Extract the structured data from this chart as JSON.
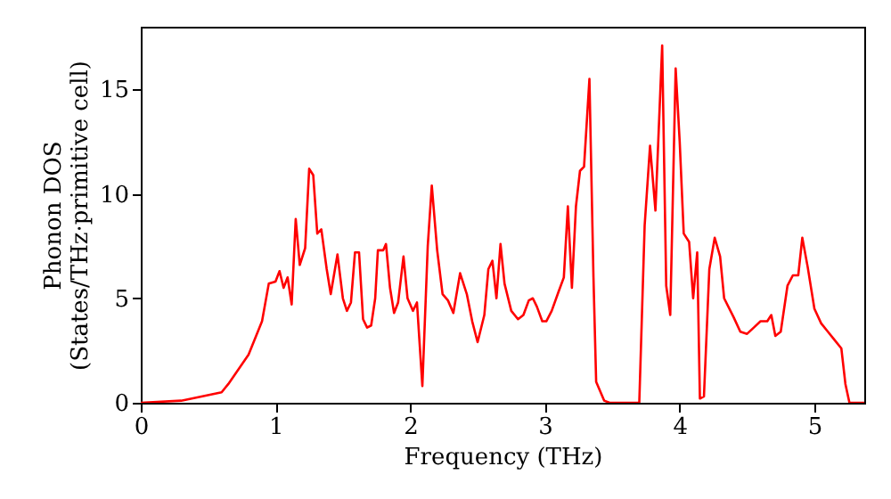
{
  "chart_data": {
    "type": "line",
    "xlabel": "Frequency (THz)",
    "ylabel": "Phonon DOS\n(States/THz·primitive cell)",
    "xlim": [
      0,
      5.37
    ],
    "ylim": [
      0,
      18
    ],
    "xticks": [
      0,
      1,
      2,
      3,
      4,
      5
    ],
    "yticks": [
      0,
      5,
      10,
      15
    ],
    "grid": false,
    "marker": "none",
    "line_style": "solid",
    "series": [
      {
        "color": "#ff0000",
        "x": [
          0,
          0.3,
          0.6,
          0.65,
          0.8,
          0.9,
          0.95,
          1.0,
          1.03,
          1.06,
          1.09,
          1.12,
          1.15,
          1.18,
          1.22,
          1.25,
          1.28,
          1.31,
          1.34,
          1.38,
          1.41,
          1.46,
          1.5,
          1.53,
          1.56,
          1.59,
          1.62,
          1.65,
          1.68,
          1.71,
          1.74,
          1.76,
          1.8,
          1.82,
          1.85,
          1.88,
          1.91,
          1.95,
          1.98,
          2.02,
          2.05,
          2.09,
          2.13,
          2.16,
          2.2,
          2.24,
          2.28,
          2.32,
          2.37,
          2.42,
          2.46,
          2.5,
          2.55,
          2.58,
          2.61,
          2.64,
          2.67,
          2.7,
          2.75,
          2.8,
          2.84,
          2.88,
          2.91,
          2.94,
          2.98,
          3.01,
          3.05,
          3.1,
          3.14,
          3.17,
          3.2,
          3.23,
          3.26,
          3.29,
          3.33,
          3.36,
          3.38,
          3.44,
          3.48,
          3.7,
          3.74,
          3.78,
          3.82,
          3.87,
          3.9,
          3.93,
          3.97,
          4.0,
          4.03,
          4.07,
          4.1,
          4.13,
          4.15,
          4.18,
          4.22,
          4.26,
          4.3,
          4.33,
          4.4,
          4.45,
          4.5,
          4.55,
          4.6,
          4.65,
          4.68,
          4.71,
          4.75,
          4.8,
          4.84,
          4.88,
          4.91,
          4.95,
          5.0,
          5.05,
          5.1,
          5.15,
          5.2,
          5.23,
          5.26,
          5.37
        ],
        "values": [
          0,
          0.1,
          0.5,
          0.9,
          2.3,
          3.9,
          5.7,
          5.8,
          6.3,
          5.5,
          6.0,
          4.7,
          8.8,
          6.6,
          7.4,
          11.2,
          10.9,
          8.1,
          8.3,
          6.4,
          5.2,
          7.1,
          5.0,
          4.4,
          4.8,
          7.2,
          7.2,
          4.0,
          3.6,
          3.7,
          5.0,
          7.3,
          7.3,
          7.6,
          5.5,
          4.3,
          4.8,
          7.0,
          5.0,
          4.4,
          4.8,
          0.8,
          7.5,
          10.4,
          7.3,
          5.2,
          4.9,
          4.3,
          6.2,
          5.2,
          3.9,
          2.9,
          4.2,
          6.4,
          6.8,
          5.0,
          7.6,
          5.7,
          4.4,
          4.0,
          4.2,
          4.9,
          5.0,
          4.6,
          3.9,
          3.9,
          4.4,
          5.3,
          6.0,
          9.4,
          5.5,
          9.4,
          11.1,
          11.3,
          15.5,
          6.0,
          1.0,
          0.1,
          0,
          0,
          8.5,
          12.3,
          9.2,
          17.1,
          5.6,
          4.2,
          16.0,
          12.5,
          8.1,
          7.7,
          5.0,
          7.2,
          0.2,
          0.3,
          6.4,
          7.9,
          7.0,
          5.0,
          4.1,
          3.4,
          3.3,
          3.6,
          3.9,
          3.9,
          4.2,
          3.2,
          3.4,
          5.6,
          6.1,
          6.1,
          7.9,
          6.5,
          4.5,
          3.8,
          3.4,
          3.0,
          2.6,
          0.9,
          0,
          0
        ]
      }
    ]
  }
}
